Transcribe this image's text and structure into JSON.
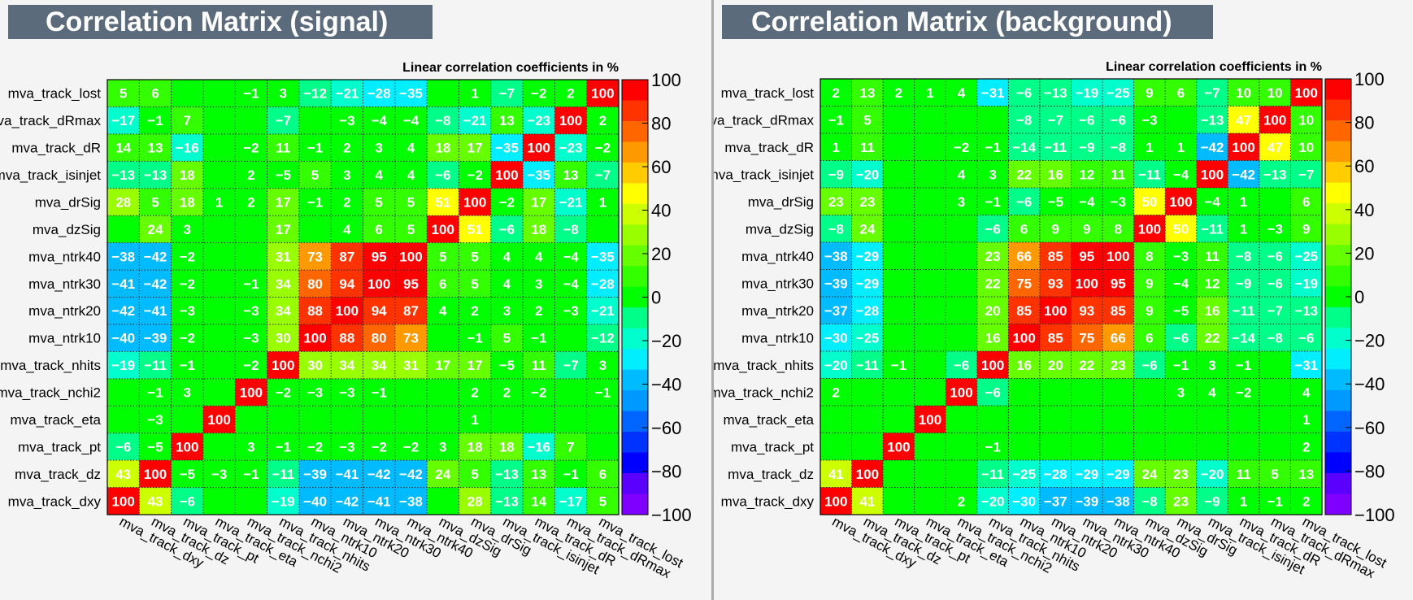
{
  "variables": [
    "mva_track_dxy",
    "mva_track_dz",
    "mva_track_pt",
    "mva_track_eta",
    "mva_track_nchi2",
    "mva_track_nhits",
    "mva_ntrk10",
    "mva_ntrk20",
    "mva_ntrk30",
    "mva_ntrk40",
    "mva_dzSig",
    "mva_drSig",
    "mva_track_isinjet",
    "mva_track_dR",
    "mva_track_dRmax",
    "mva_track_lost"
  ],
  "chart_data": [
    {
      "type": "heatmap",
      "title": "Correlation Matrix (signal)",
      "subtitle": "Linear correlation coefficients in %",
      "zlim": [
        -100,
        100
      ],
      "colorbar_ticks": [
        "100",
        "80",
        "60",
        "40",
        "20",
        "0",
        "−20",
        "−40",
        "−60",
        "−80",
        "−100"
      ],
      "rows_top_to_bottom": [
        [
          5,
          6,
          null,
          null,
          -1,
          3,
          -12,
          -21,
          -28,
          -35,
          null,
          1,
          -7,
          -2,
          2,
          100
        ],
        [
          -17,
          -1,
          7,
          null,
          null,
          -7,
          null,
          -3,
          -4,
          -4,
          -8,
          -21,
          13,
          -23,
          100,
          2
        ],
        [
          14,
          13,
          -16,
          null,
          -2,
          11,
          -1,
          2,
          3,
          4,
          18,
          17,
          -35,
          100,
          -23,
          -2
        ],
        [
          -13,
          -13,
          18,
          null,
          2,
          -5,
          5,
          3,
          4,
          4,
          -6,
          -2,
          100,
          -35,
          13,
          -7
        ],
        [
          28,
          5,
          18,
          1,
          2,
          17,
          -1,
          2,
          5,
          5,
          51,
          100,
          -2,
          17,
          -21,
          1
        ],
        [
          null,
          24,
          3,
          null,
          null,
          17,
          null,
          4,
          6,
          5,
          100,
          51,
          -6,
          18,
          -8,
          null
        ],
        [
          -38,
          -42,
          -2,
          null,
          null,
          31,
          73,
          87,
          95,
          100,
          5,
          5,
          4,
          4,
          -4,
          -35
        ],
        [
          -41,
          -42,
          -2,
          null,
          -1,
          34,
          80,
          94,
          100,
          95,
          6,
          5,
          4,
          3,
          -4,
          -28
        ],
        [
          -42,
          -41,
          -3,
          null,
          -3,
          34,
          88,
          100,
          94,
          87,
          4,
          2,
          3,
          2,
          -3,
          -21
        ],
        [
          -40,
          -39,
          -2,
          null,
          -3,
          30,
          100,
          88,
          80,
          73,
          null,
          -1,
          5,
          -1,
          null,
          -12
        ],
        [
          -19,
          -11,
          -1,
          null,
          -2,
          100,
          30,
          34,
          34,
          31,
          17,
          17,
          -5,
          11,
          -7,
          3
        ],
        [
          null,
          -1,
          3,
          null,
          100,
          -2,
          -3,
          -3,
          -1,
          null,
          null,
          2,
          2,
          -2,
          null,
          -1
        ],
        [
          null,
          -3,
          null,
          100,
          null,
          null,
          null,
          null,
          null,
          null,
          null,
          1,
          null,
          null,
          null,
          null
        ],
        [
          -6,
          -5,
          100,
          null,
          3,
          -1,
          -2,
          -3,
          -2,
          -2,
          3,
          18,
          18,
          -16,
          7,
          null
        ],
        [
          43,
          100,
          -5,
          -3,
          -1,
          -11,
          -39,
          -41,
          -42,
          -42,
          24,
          5,
          -13,
          13,
          -1,
          6
        ],
        [
          100,
          43,
          -6,
          null,
          null,
          -19,
          -40,
          -42,
          -41,
          -38,
          null,
          28,
          -13,
          14,
          -17,
          5
        ]
      ]
    },
    {
      "type": "heatmap",
      "title": "Correlation Matrix (background)",
      "subtitle": "Linear correlation coefficients in %",
      "zlim": [
        -100,
        100
      ],
      "colorbar_ticks": [
        "100",
        "80",
        "60",
        "40",
        "20",
        "0",
        "−20",
        "−40",
        "−60",
        "−80",
        "−100"
      ],
      "rows_top_to_bottom": [
        [
          2,
          13,
          2,
          1,
          4,
          -31,
          -6,
          -13,
          -19,
          -25,
          9,
          6,
          -7,
          10,
          10,
          100
        ],
        [
          -1,
          5,
          null,
          null,
          null,
          null,
          -8,
          -7,
          -6,
          -6,
          -3,
          null,
          -13,
          47,
          100,
          10
        ],
        [
          1,
          11,
          null,
          null,
          -2,
          -1,
          -14,
          -11,
          -9,
          -8,
          1,
          1,
          -42,
          100,
          47,
          10
        ],
        [
          -9,
          -20,
          null,
          null,
          4,
          3,
          22,
          16,
          12,
          11,
          -11,
          -4,
          100,
          -42,
          -13,
          -7
        ],
        [
          23,
          23,
          null,
          null,
          3,
          -1,
          -6,
          -5,
          -4,
          -3,
          50,
          100,
          -4,
          1,
          null,
          6
        ],
        [
          -8,
          24,
          null,
          null,
          null,
          -6,
          6,
          9,
          9,
          8,
          100,
          50,
          -11,
          1,
          -3,
          9
        ],
        [
          -38,
          -29,
          null,
          null,
          null,
          23,
          66,
          85,
          95,
          100,
          8,
          -3,
          11,
          -8,
          -6,
          -25
        ],
        [
          -39,
          -29,
          null,
          null,
          null,
          22,
          75,
          93,
          100,
          95,
          9,
          -4,
          12,
          -9,
          -6,
          -19
        ],
        [
          -37,
          -28,
          null,
          null,
          null,
          20,
          85,
          100,
          93,
          85,
          9,
          -5,
          16,
          -11,
          -7,
          -13
        ],
        [
          -30,
          -25,
          null,
          null,
          null,
          16,
          100,
          85,
          75,
          66,
          6,
          -6,
          22,
          -14,
          -8,
          -6
        ],
        [
          -20,
          -11,
          -1,
          null,
          -6,
          100,
          16,
          20,
          22,
          23,
          -6,
          -1,
          3,
          -1,
          null,
          -31
        ],
        [
          2,
          null,
          null,
          null,
          100,
          -6,
          null,
          null,
          null,
          null,
          null,
          3,
          4,
          -2,
          null,
          4
        ],
        [
          null,
          null,
          null,
          100,
          null,
          null,
          null,
          null,
          null,
          null,
          null,
          null,
          null,
          null,
          null,
          1
        ],
        [
          null,
          null,
          100,
          null,
          null,
          -1,
          null,
          null,
          null,
          null,
          null,
          null,
          null,
          null,
          null,
          2
        ],
        [
          41,
          100,
          null,
          null,
          null,
          -11,
          -25,
          -28,
          -29,
          -29,
          24,
          23,
          -20,
          11,
          5,
          13
        ],
        [
          100,
          41,
          null,
          null,
          2,
          -20,
          -30,
          -37,
          -39,
          -38,
          -8,
          23,
          -9,
          1,
          -1,
          2
        ]
      ]
    }
  ]
}
